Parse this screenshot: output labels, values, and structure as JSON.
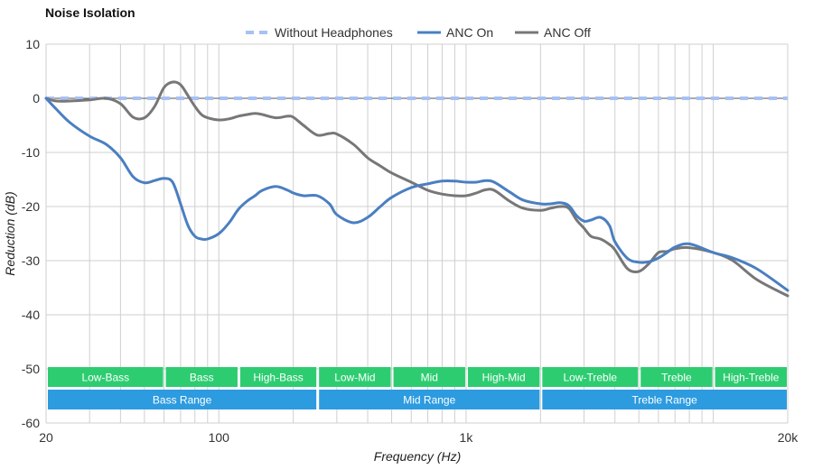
{
  "chart_data": {
    "type": "line",
    "title": "Noise Isolation",
    "xlabel": "Frequency (Hz)",
    "ylabel": "Reduction (dB)",
    "x_scale": "log",
    "xlim": [
      20,
      20000
    ],
    "ylim": [
      -60,
      10
    ],
    "x_ticks": [
      {
        "value": 20,
        "label": "20"
      },
      {
        "value": 100,
        "label": "100"
      },
      {
        "value": 1000,
        "label": "1k"
      },
      {
        "value": 20000,
        "label": "20k"
      }
    ],
    "y_ticks": [
      10,
      0,
      -10,
      -20,
      -30,
      -40,
      -50,
      -60
    ],
    "grid": true,
    "legend": "top-center",
    "series": [
      {
        "name": "Without Headphones",
        "color": "#a8c1f5",
        "style": "dashed",
        "x": [
          20,
          20000
        ],
        "y": [
          0,
          0
        ]
      },
      {
        "name": "ANC On",
        "color": "#4a7fc1",
        "style": "solid",
        "x": [
          20,
          22,
          25,
          30,
          35,
          40,
          45,
          50,
          55,
          60,
          65,
          70,
          75,
          80,
          85,
          90,
          100,
          110,
          120,
          130,
          140,
          150,
          170,
          190,
          200,
          220,
          250,
          280,
          300,
          350,
          400,
          450,
          500,
          600,
          700,
          800,
          900,
          1000,
          1100,
          1200,
          1300,
          1500,
          1700,
          2000,
          2200,
          2400,
          2600,
          2800,
          3000,
          3200,
          3500,
          3800,
          4000,
          4500,
          5000,
          5500,
          6000,
          6500,
          7000,
          8000,
          10000,
          12000,
          15000,
          20000
        ],
        "y": [
          0,
          -2,
          -4.5,
          -7,
          -8.5,
          -11,
          -14.5,
          -15.6,
          -15.2,
          -14.8,
          -15.5,
          -19.5,
          -23.5,
          -25.5,
          -26,
          -26,
          -25,
          -23,
          -20.5,
          -19,
          -18,
          -17,
          -16.3,
          -17,
          -17.5,
          -18,
          -18,
          -19.5,
          -21.5,
          -23,
          -22,
          -20,
          -18.3,
          -16.5,
          -15.8,
          -15.3,
          -15.3,
          -15.5,
          -15.5,
          -15.2,
          -15.5,
          -17.3,
          -18.8,
          -19.5,
          -19.5,
          -19.3,
          -19.8,
          -21.7,
          -22.7,
          -22.5,
          -22,
          -23.5,
          -26.5,
          -29.6,
          -30.3,
          -30.2,
          -29.5,
          -28.5,
          -27.5,
          -26.9,
          -28.5,
          -29.5,
          -31.5,
          -35.5
        ]
      },
      {
        "name": "ANC Off",
        "color": "#777777",
        "style": "solid",
        "x": [
          20,
          22,
          25,
          30,
          35,
          40,
          45,
          50,
          55,
          60,
          65,
          70,
          75,
          80,
          85,
          90,
          100,
          110,
          120,
          130,
          140,
          150,
          170,
          190,
          200,
          220,
          250,
          280,
          300,
          350,
          400,
          450,
          500,
          600,
          700,
          800,
          900,
          1000,
          1100,
          1200,
          1300,
          1500,
          1700,
          2000,
          2200,
          2400,
          2600,
          2800,
          3000,
          3200,
          3500,
          3800,
          4000,
          4500,
          5000,
          5500,
          6000,
          6500,
          7000,
          8000,
          10000,
          12000,
          15000,
          20000
        ],
        "y": [
          0,
          -0.5,
          -0.5,
          -0.3,
          0,
          -1,
          -3.5,
          -3.6,
          -1.5,
          2,
          3,
          2.5,
          0.5,
          -1.5,
          -3,
          -3.6,
          -4,
          -3.8,
          -3.3,
          -3,
          -2.8,
          -3,
          -3.6,
          -3.3,
          -3.5,
          -5,
          -6.8,
          -6.5,
          -6.6,
          -8.5,
          -11,
          -12.5,
          -13.8,
          -15.5,
          -17,
          -17.7,
          -18,
          -18,
          -17.5,
          -16.9,
          -17,
          -19,
          -20.3,
          -20.7,
          -20.3,
          -20,
          -20.3,
          -22.5,
          -24,
          -25.5,
          -26,
          -27,
          -28,
          -31.5,
          -32,
          -30.5,
          -28.5,
          -28.3,
          -27.8,
          -27.6,
          -28.5,
          -30,
          -33.5,
          -36.5
        ]
      }
    ],
    "bands": [
      {
        "label": "Low-Bass",
        "from": 20,
        "to": 60,
        "row": 1,
        "color": "#2ecc71"
      },
      {
        "label": "Bass",
        "from": 60,
        "to": 120,
        "row": 1,
        "color": "#2ecc71"
      },
      {
        "label": "High-Bass",
        "from": 120,
        "to": 250,
        "row": 1,
        "color": "#2ecc71"
      },
      {
        "label": "Low-Mid",
        "from": 250,
        "to": 500,
        "row": 1,
        "color": "#2ecc71"
      },
      {
        "label": "Mid",
        "from": 500,
        "to": 1000,
        "row": 1,
        "color": "#2ecc71"
      },
      {
        "label": "High-Mid",
        "from": 1000,
        "to": 2000,
        "row": 1,
        "color": "#2ecc71"
      },
      {
        "label": "Low-Treble",
        "from": 2000,
        "to": 5000,
        "row": 1,
        "color": "#2ecc71"
      },
      {
        "label": "Treble",
        "from": 5000,
        "to": 10000,
        "row": 1,
        "color": "#2ecc71"
      },
      {
        "label": "High-Treble",
        "from": 10000,
        "to": 20000,
        "row": 1,
        "color": "#2ecc71"
      },
      {
        "label": "Bass Range",
        "from": 20,
        "to": 250,
        "row": 2,
        "color": "#2d9be0"
      },
      {
        "label": "Mid Range",
        "from": 250,
        "to": 2000,
        "row": 2,
        "color": "#2d9be0"
      },
      {
        "label": "Treble Range",
        "from": 2000,
        "to": 20000,
        "row": 2,
        "color": "#2d9be0"
      }
    ]
  }
}
